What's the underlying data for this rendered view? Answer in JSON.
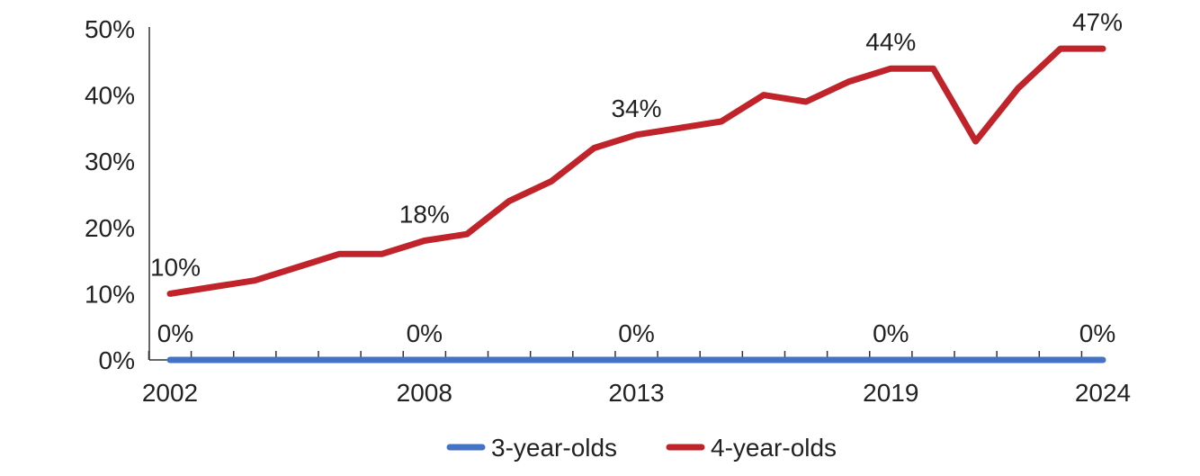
{
  "chart_data": {
    "type": "line",
    "x": [
      2002,
      2003,
      2004,
      2005,
      2006,
      2007,
      2008,
      2009,
      2010,
      2011,
      2012,
      2013,
      2014,
      2015,
      2016,
      2017,
      2018,
      2019,
      2020,
      2021,
      2022,
      2023,
      2024
    ],
    "x_tick_labels": [
      "2002",
      "2008",
      "2013",
      "2019",
      "2024"
    ],
    "y_tick_labels": [
      "0%",
      "10%",
      "20%",
      "30%",
      "40%",
      "50%"
    ],
    "ylim": [
      0,
      50
    ],
    "grid": false,
    "legend_position": "bottom",
    "series": [
      {
        "name": "3-year-olds",
        "color": "#4472c4",
        "values": [
          0,
          0,
          0,
          0,
          0,
          0,
          0,
          0,
          0,
          0,
          0,
          0,
          0,
          0,
          0,
          0,
          0,
          0,
          0,
          0,
          0,
          0,
          0
        ],
        "point_labels": [
          {
            "x": 2002,
            "text": "0%"
          },
          {
            "x": 2008,
            "text": "0%"
          },
          {
            "x": 2013,
            "text": "0%"
          },
          {
            "x": 2019,
            "text": "0%"
          },
          {
            "x": 2024,
            "text": "0%"
          }
        ]
      },
      {
        "name": "4-year-olds",
        "color": "#c0232a",
        "values": [
          10,
          11,
          12,
          14,
          16,
          16,
          18,
          19,
          24,
          27,
          32,
          34,
          35,
          36,
          40,
          39,
          42,
          44,
          44,
          33,
          41,
          47,
          47
        ],
        "point_labels": [
          {
            "x": 2002,
            "text": "10%"
          },
          {
            "x": 2008,
            "text": "18%"
          },
          {
            "x": 2013,
            "text": "34%"
          },
          {
            "x": 2019,
            "text": "44%"
          },
          {
            "x": 2024,
            "text": "47%"
          }
        ]
      }
    ]
  }
}
